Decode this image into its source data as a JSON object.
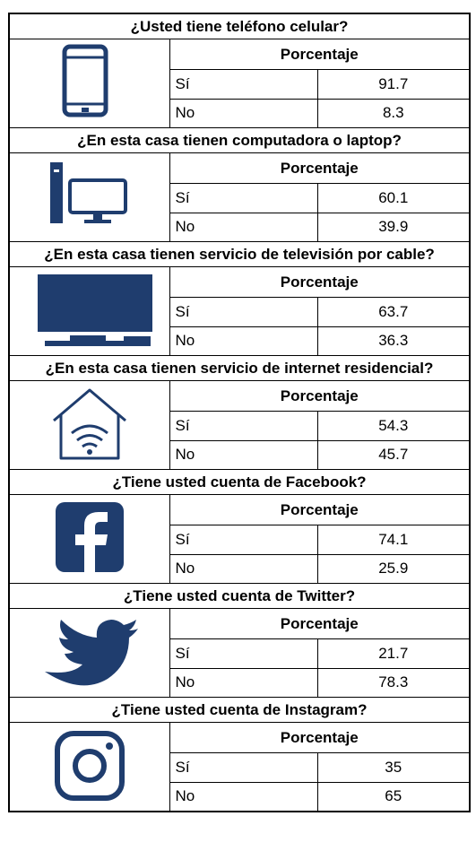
{
  "sections": [
    {
      "question": "¿Usted tiene teléfono celular?",
      "header": "Porcentaje",
      "rows": [
        [
          "Sí",
          91.7
        ],
        [
          "No",
          8.3
        ]
      ]
    },
    {
      "question": "¿En esta casa tienen computadora o laptop?",
      "header": "Porcentaje",
      "rows": [
        [
          "Sí",
          60.1
        ],
        [
          "No",
          39.9
        ]
      ]
    },
    {
      "question": "¿En esta casa tienen servicio de televisión por cable?",
      "header": "Porcentaje",
      "rows": [
        [
          "Sí",
          63.7
        ],
        [
          "No",
          36.3
        ]
      ]
    },
    {
      "question": "¿En esta casa tienen servicio de internet residencial?",
      "header": "Porcentaje",
      "rows": [
        [
          "Sí",
          54.3
        ],
        [
          "No",
          45.7
        ]
      ]
    },
    {
      "question": "¿Tiene usted cuenta de Facebook?",
      "header": "Porcentaje",
      "rows": [
        [
          "Sí",
          74.1
        ],
        [
          "No",
          25.9
        ]
      ]
    },
    {
      "question": "¿Tiene usted cuenta de Twitter?",
      "header": "Porcentaje",
      "rows": [
        [
          "Sí",
          21.7
        ],
        [
          "No",
          78.3
        ]
      ]
    },
    {
      "question": "¿Tiene usted cuenta de Instagram?",
      "header": "Porcentaje",
      "rows": [
        [
          "Sí",
          35
        ],
        [
          "No",
          65
        ]
      ]
    }
  ]
}
